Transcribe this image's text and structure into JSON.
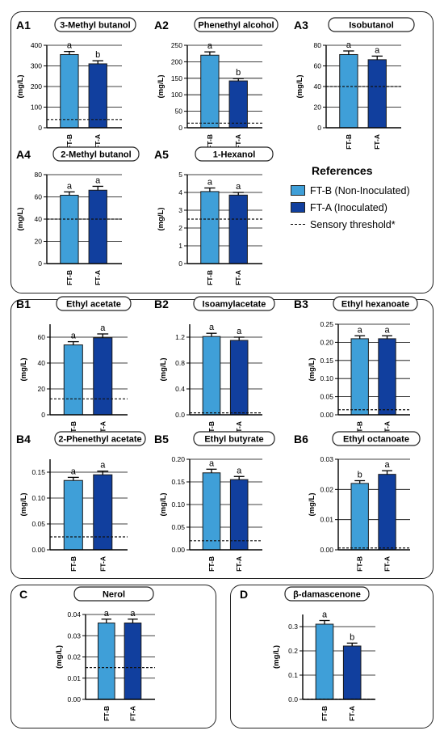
{
  "colors": {
    "ftb": "#3f9fd8",
    "fta": "#113f9e",
    "threshold": "#111111",
    "axis": "#000000"
  },
  "legend": {
    "title": "References",
    "ftb_label": "FT-B (Non-Inoculated)",
    "fta_label": "FT-A (Inoculated)",
    "threshold_label": "Sensory threshold*"
  },
  "chart_data": [
    {
      "id": "A1",
      "type": "bar",
      "title": "3-Methyl butanol",
      "ylabel": "(mg/L)",
      "categories": [
        "FT-B",
        "FT-A"
      ],
      "values": [
        355,
        310
      ],
      "errors": [
        15,
        15
      ],
      "letters": [
        "a",
        "b"
      ],
      "ylim": [
        0,
        400
      ],
      "yticks": [
        "0",
        "100",
        "200",
        "300",
        "400"
      ],
      "threshold": 40
    },
    {
      "id": "A2",
      "type": "bar",
      "title": "Phenethyl alcohol",
      "ylabel": "(mg/L)",
      "categories": [
        "FT-B",
        "FT-A"
      ],
      "values": [
        220,
        142
      ],
      "errors": [
        10,
        7
      ],
      "letters": [
        "a",
        "b"
      ],
      "ylim": [
        0,
        250
      ],
      "yticks": [
        "0",
        "50",
        "100",
        "150",
        "200",
        "250"
      ],
      "threshold": 14
    },
    {
      "id": "A3",
      "type": "bar",
      "title": "Isobutanol",
      "ylabel": "(mg/L)",
      "categories": [
        "FT-B",
        "FT-A"
      ],
      "values": [
        71,
        66
      ],
      "errors": [
        3.5,
        3.5
      ],
      "letters": [
        "a",
        "a"
      ],
      "ylim": [
        0,
        80
      ],
      "yticks": [
        "0",
        "20",
        "40",
        "60",
        "80"
      ],
      "threshold": 40
    },
    {
      "id": "A4",
      "type": "bar",
      "title": "2-Methyl butanol",
      "ylabel": "(mg/L)",
      "categories": [
        "FT-B",
        "FT-A"
      ],
      "values": [
        61.5,
        66
      ],
      "errors": [
        3,
        3.5
      ],
      "letters": [
        "a",
        "a"
      ],
      "ylim": [
        0,
        80
      ],
      "yticks": [
        "0",
        "20",
        "40",
        "60",
        "80"
      ],
      "threshold": 40
    },
    {
      "id": "A5",
      "type": "bar",
      "title": "1-Hexanol",
      "ylabel": "(mg/L)",
      "categories": [
        "FT-B",
        "FT-A"
      ],
      "values": [
        4.05,
        3.85
      ],
      "errors": [
        0.2,
        0.15
      ],
      "letters": [
        "a",
        "a"
      ],
      "ylim": [
        0,
        5
      ],
      "yticks": [
        "0",
        "1",
        "2",
        "3",
        "4",
        "5"
      ],
      "threshold": 2.5
    },
    {
      "id": "B1",
      "type": "bar",
      "title": "Ethyl acetate",
      "ylabel": "(mg/L)",
      "categories": [
        "FT-B",
        "FT-A"
      ],
      "values": [
        54,
        59.5
      ],
      "errors": [
        2.5,
        3
      ],
      "letters": [
        "a",
        "a"
      ],
      "ylim": [
        0,
        70
      ],
      "yticks": [
        "0",
        "20",
        "40",
        "60"
      ],
      "threshold": 12.3
    },
    {
      "id": "B2",
      "type": "bar",
      "title": "Isoamylacetate",
      "ylabel": "(mg/L)",
      "categories": [
        "FT-B",
        "FT-A"
      ],
      "values": [
        1.21,
        1.15
      ],
      "errors": [
        0.05,
        0.05
      ],
      "letters": [
        "a",
        "a"
      ],
      "ylim": [
        0,
        1.4
      ],
      "yticks": [
        "0.0",
        "0.4",
        "0.8",
        "1.2"
      ],
      "threshold": 0.03
    },
    {
      "id": "B3",
      "type": "bar",
      "title": "Ethyl hexanoate",
      "ylabel": "(mg/L)",
      "categories": [
        "FT-B",
        "FT-A"
      ],
      "values": [
        0.21,
        0.21
      ],
      "errors": [
        0.008,
        0.008
      ],
      "letters": [
        "a",
        "a"
      ],
      "ylim": [
        0,
        0.25
      ],
      "yticks": [
        "0.00",
        "0.05",
        "0.10",
        "0.15",
        "0.20",
        "0.25"
      ],
      "threshold": 0.014
    },
    {
      "id": "B4",
      "type": "bar",
      "title": "2-Phenethyl acetate",
      "ylabel": "(mg/L)",
      "categories": [
        "FT-B",
        "FT-A"
      ],
      "values": [
        0.134,
        0.145
      ],
      "errors": [
        0.006,
        0.007
      ],
      "letters": [
        "a",
        "a"
      ],
      "ylim": [
        0,
        0.175
      ],
      "yticks": [
        "0.00",
        "0.05",
        "0.10",
        "0.15"
      ],
      "threshold": 0.025
    },
    {
      "id": "B5",
      "type": "bar",
      "title": "Ethyl butyrate",
      "ylabel": "(mg/L)",
      "categories": [
        "FT-B",
        "FT-A"
      ],
      "values": [
        0.17,
        0.155
      ],
      "errors": [
        0.008,
        0.007
      ],
      "letters": [
        "a",
        "a"
      ],
      "ylim": [
        0,
        0.2
      ],
      "yticks": [
        "0.00",
        "0.05",
        "0.10",
        "0.15",
        "0.20"
      ],
      "threshold": 0.02
    },
    {
      "id": "B6",
      "type": "bar",
      "title": "Ethyl octanoate",
      "ylabel": "(mg/L)",
      "categories": [
        "FT-B",
        "FT-A"
      ],
      "values": [
        0.022,
        0.025
      ],
      "errors": [
        0.0009,
        0.0012
      ],
      "letters": [
        "b",
        "a"
      ],
      "ylim": [
        0,
        0.03
      ],
      "yticks": [
        "0.00",
        "0.01",
        "0.02",
        "0.03"
      ],
      "threshold": 0.0006
    },
    {
      "id": "C",
      "type": "bar",
      "title": "Nerol",
      "ylabel": "(mg/L)",
      "categories": [
        "FT-B",
        "FT-A"
      ],
      "values": [
        0.036,
        0.036
      ],
      "errors": [
        0.0018,
        0.0018
      ],
      "letters": [
        "a",
        "a"
      ],
      "ylim": [
        0,
        0.04
      ],
      "yticks": [
        "0.00",
        "0.01",
        "0.02",
        "0.03",
        "0.04"
      ],
      "threshold": 0.015
    },
    {
      "id": "D",
      "type": "bar",
      "title": "β-damascenone",
      "ylabel": "(mg/L)",
      "categories": [
        "FT-B",
        "FT-A"
      ],
      "values": [
        0.31,
        0.22
      ],
      "errors": [
        0.015,
        0.012
      ],
      "letters": [
        "a",
        "b"
      ],
      "ylim": [
        0,
        0.35
      ],
      "yticks": [
        "0.0",
        "0.1",
        "0.2",
        "0.3"
      ],
      "threshold": 0.0006
    }
  ]
}
